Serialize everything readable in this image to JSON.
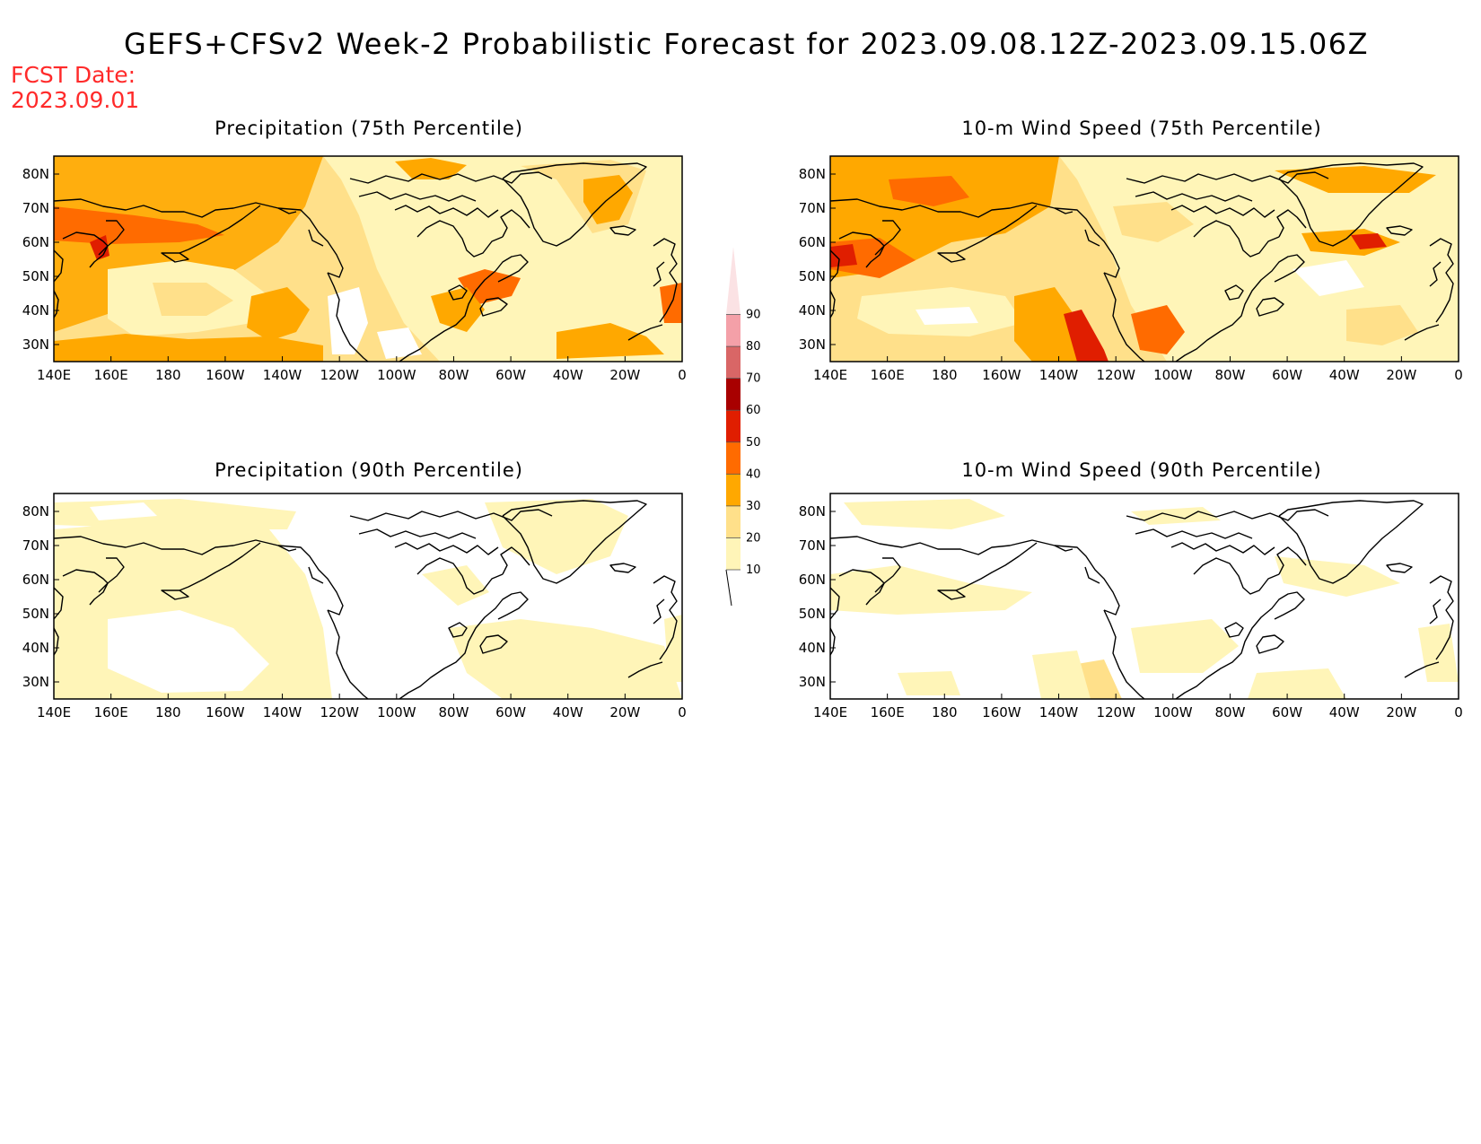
{
  "title": "GEFS+CFSv2 Week-2 Probabilistic Forecast for 2023.09.08.12Z-2023.09.15.06Z",
  "fcst_date_label": "FCST Date:",
  "fcst_date": "2023.09.01",
  "panels": [
    {
      "title": "Precipitation (75th Percentile)"
    },
    {
      "title": "10-m Wind Speed (75th Percentile)"
    },
    {
      "title": "Precipitation (90th Percentile)"
    },
    {
      "title": "10-m Wind Speed (90th Percentile)"
    }
  ],
  "lon_ticks": [
    "140E",
    "160E",
    "180",
    "160W",
    "140W",
    "120W",
    "100W",
    "80W",
    "60W",
    "40W",
    "20W",
    "0"
  ],
  "lat_ticks": [
    "80N",
    "70N",
    "60N",
    "50N",
    "40N",
    "30N"
  ],
  "colorbar": {
    "levels": [
      "10",
      "20",
      "30",
      "40",
      "50",
      "60",
      "70",
      "80",
      "90"
    ],
    "colors": [
      "#fff5b8",
      "#ffe08a",
      "#ffa800",
      "#ff6b00",
      "#e01e00",
      "#a80000",
      "#d96666",
      "#f4a0a8",
      "#fbe2e4"
    ]
  },
  "colors": {
    "title": "#000000",
    "fcst_date": "#ff2a2a",
    "coast": "#000000"
  }
}
